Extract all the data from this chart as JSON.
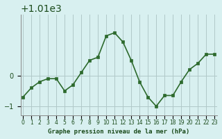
{
  "x": [
    0,
    1,
    2,
    3,
    4,
    5,
    6,
    7,
    8,
    9,
    10,
    11,
    12,
    13,
    14,
    15,
    16,
    17,
    18,
    19,
    20,
    21,
    22,
    23
  ],
  "y": [
    1009.3,
    1009.6,
    1009.8,
    1009.9,
    1009.9,
    1009.5,
    1009.7,
    1010.1,
    1010.5,
    1010.6,
    1011.3,
    1011.4,
    1011.1,
    1010.5,
    1009.8,
    1009.3,
    1009.0,
    1009.35,
    1009.35,
    1009.8,
    1010.2,
    1010.4,
    1010.7,
    1010.7
  ],
  "line_color": "#2d6a2d",
  "marker_color": "#2d6a2d",
  "bg_color": "#d8f0f0",
  "grid_color": "#b0c8c8",
  "axis_label_color": "#1a4a1a",
  "title": "Graphe pression niveau de la mer (hPa)",
  "yticks": [
    1009,
    1010
  ],
  "ylim": [
    1008.7,
    1012.0
  ],
  "xlim": [
    -0.3,
    23.3
  ]
}
